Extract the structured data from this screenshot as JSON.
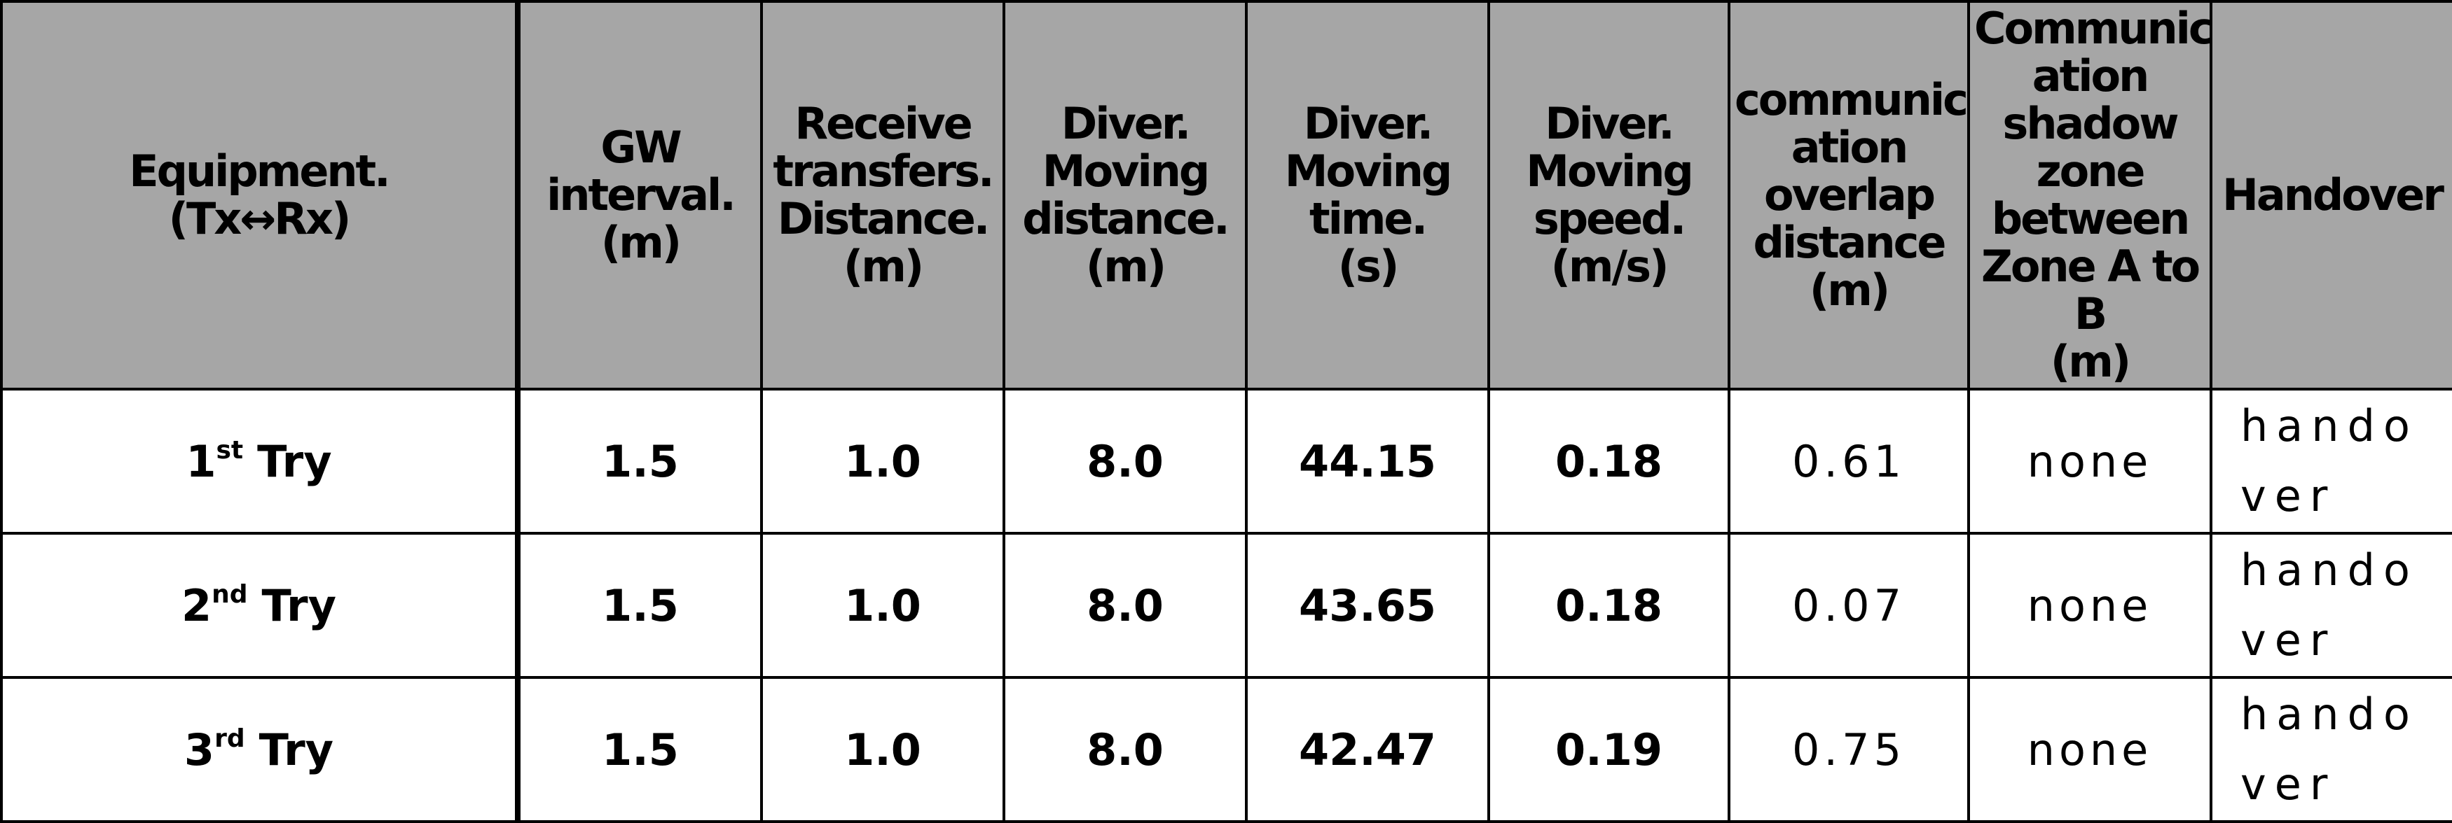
{
  "table": {
    "headers": [
      [
        "Equipment.",
        "(Tx↔Rx)"
      ],
      [
        "GW",
        "interval.",
        "(m)"
      ],
      [
        "Receive",
        "transfers.",
        "Distance.",
        "(m)"
      ],
      [
        "Diver.",
        "Moving",
        "distance.",
        "(m)"
      ],
      [
        "Diver.",
        "Moving",
        "time.",
        "(s)"
      ],
      [
        "Diver.",
        "Moving",
        "speed.",
        "(m/s)"
      ],
      [
        "communic",
        "ation",
        "overlap",
        "distance",
        "(m)"
      ],
      [
        "Communic",
        "ation",
        "shadow",
        "zone",
        "between",
        "Zone A to",
        "B",
        "(m)"
      ],
      [
        "Handover"
      ]
    ],
    "rows": [
      [
        {
          "number": "1",
          "sup": "st",
          "word": "Try"
        },
        "1.5",
        "1.0",
        "8.0",
        "44.15",
        "0.18",
        "0.61",
        "none",
        "handover"
      ],
      [
        {
          "number": "2",
          "sup": "nd",
          "word": "Try"
        },
        "1.5",
        "1.0",
        "8.0",
        "43.65",
        "0.18",
        "0.07",
        "none",
        "handover"
      ],
      [
        {
          "number": "3",
          "sup": "rd",
          "word": "Try"
        },
        "1.5",
        "1.0",
        "8.0",
        "42.47",
        "0.19",
        "0.75",
        "none",
        "handover"
      ]
    ]
  }
}
